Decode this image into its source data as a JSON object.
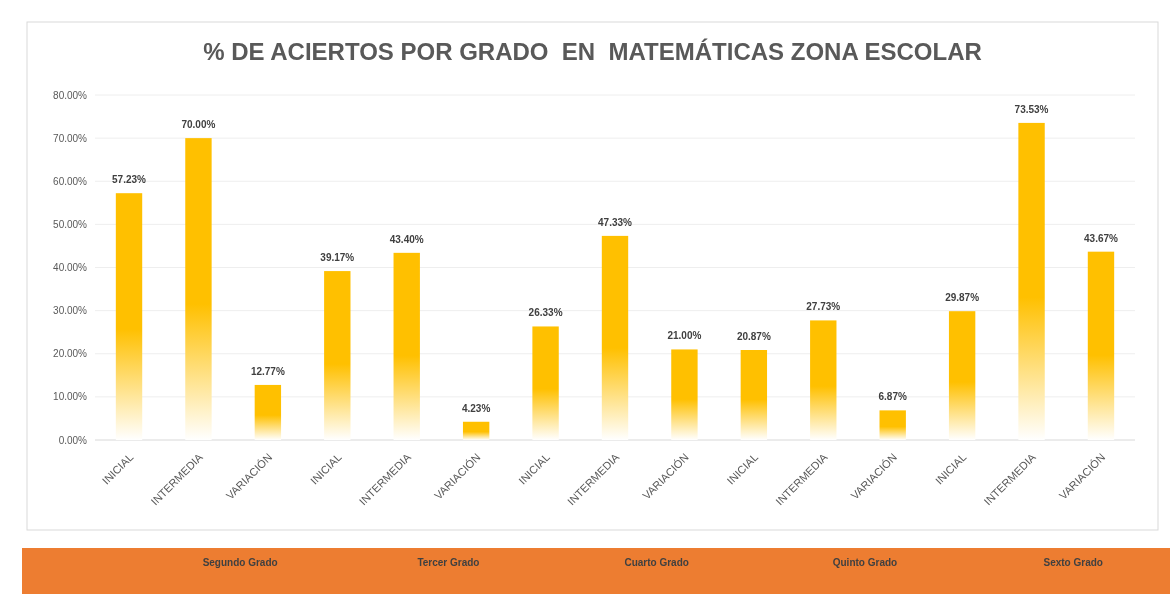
{
  "chart_data": {
    "type": "bar",
    "title": "% DE ACIERTOS POR GRADO  EN  MATEMÁTICAS ZONA ESCOLAR",
    "categories": [
      "INICIAL",
      "INTERMEDIA",
      "VARIACIÓN",
      "INICIAL",
      "INTERMEDIA",
      "VARIACIÓN",
      "INICIAL",
      "INTERMEDIA",
      "VARIACIÓN",
      "INICIAL",
      "INTERMEDIA",
      "VARIACIÓN",
      "INICIAL",
      "INTERMEDIA",
      "VARIACIÓN"
    ],
    "values": [
      57.23,
      70.0,
      12.77,
      39.17,
      43.4,
      4.23,
      26.33,
      47.33,
      21.0,
      20.87,
      27.73,
      6.87,
      29.87,
      73.53,
      43.67
    ],
    "value_labels": [
      "57.23%",
      "70.00%",
      "12.77%",
      "39.17%",
      "43.40%",
      "4.23%",
      "26.33%",
      "47.33%",
      "21.00%",
      "20.87%",
      "27.73%",
      "6.87%",
      "29.87%",
      "73.53%",
      "43.67%"
    ],
    "color": "#ffc000",
    "ylim": [
      0,
      80
    ],
    "yticks": [
      {
        "value": 0,
        "label": "0.00%"
      },
      {
        "value": 10,
        "label": "10.00%"
      },
      {
        "value": 20,
        "label": "20.00%"
      },
      {
        "value": 30,
        "label": "30.00%"
      },
      {
        "value": 40,
        "label": "40.00%"
      },
      {
        "value": 50,
        "label": "50.00%"
      },
      {
        "value": 60,
        "label": "60.00%"
      },
      {
        "value": 70,
        "label": "70.00%"
      },
      {
        "value": 80,
        "label": "80.00%"
      }
    ],
    "grid": "y",
    "annotations": [
      "Segundo Grado",
      "Tercer Grado",
      "Cuarto Grado",
      "Quinto Grado",
      "Sexto Grado"
    ]
  }
}
